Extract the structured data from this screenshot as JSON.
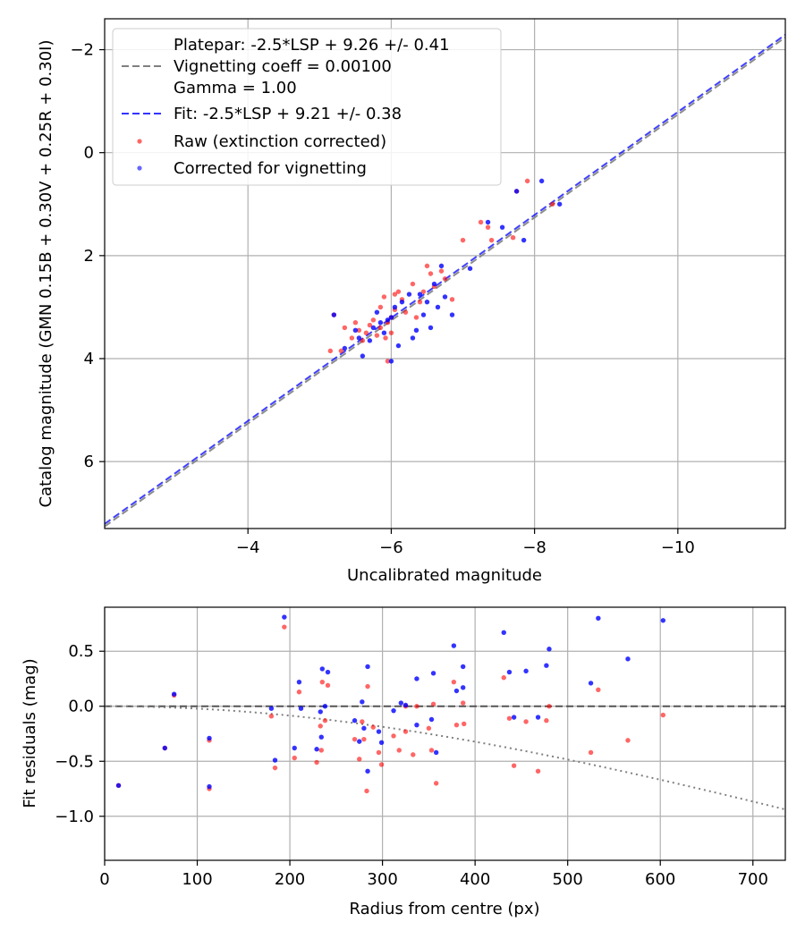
{
  "colors": {
    "raw": "#ff0000",
    "corrected": "#0000ff",
    "platepar_line": "#808080",
    "fit_line": "#0000ff",
    "grid": "#b0b0b0",
    "zero_line": "#404040",
    "vignetting_curve": "#808080"
  },
  "chart_data": [
    {
      "type": "scatter",
      "xlabel": "Uncalibrated magnitude",
      "ylabel": "Catalog magnitude (GMN 0.15B + 0.30V + 0.25R + 0.30I)",
      "xlim": [
        -2,
        -11.5
      ],
      "ylim": [
        7.3,
        -2.6
      ],
      "x_ticks": [
        -4,
        -6,
        -8,
        -10
      ],
      "y_ticks": [
        -2,
        0,
        2,
        4,
        6
      ],
      "x_tick_labels": [
        "−4",
        "−6",
        "−8",
        "−10"
      ],
      "y_tick_labels": [
        "−2",
        "0",
        "2",
        "4",
        "6"
      ],
      "grid": true,
      "legend_position": "top-left",
      "legend": {
        "platepar_lines": [
          "Platepar: -2.5*LSP + 9.26 +/- 0.41",
          "Vignetting coeff = 0.00100",
          "Gamma = 1.00"
        ],
        "fit": "Fit: -2.5*LSP + 9.21 +/- 0.38",
        "raw": "Raw (extinction corrected)",
        "corrected": "Corrected for vignetting"
      },
      "lines": [
        {
          "name": "Platepar",
          "slope": -2.5,
          "intercept": 9.26,
          "style": "dashed"
        },
        {
          "name": "Fit",
          "slope": -2.5,
          "intercept": 9.21,
          "style": "dashed"
        }
      ],
      "series": [
        {
          "name": "Raw (extinction corrected)",
          "points": [
            [
              -5.15,
              3.85
            ],
            [
              -5.35,
              3.4
            ],
            [
              -5.3,
              3.85
            ],
            [
              -5.2,
              3.15
            ],
            [
              -5.45,
              3.6
            ],
            [
              -5.5,
              3.3
            ],
            [
              -5.55,
              3.45
            ],
            [
              -5.6,
              3.65
            ],
            [
              -5.65,
              3.5
            ],
            [
              -5.7,
              3.35
            ],
            [
              -5.75,
              3.25
            ],
            [
              -5.8,
              3.55
            ],
            [
              -5.85,
              3.4
            ],
            [
              -5.85,
              3.0
            ],
            [
              -5.9,
              2.8
            ],
            [
              -5.92,
              3.6
            ],
            [
              -5.95,
              3.3
            ],
            [
              -5.95,
              4.05
            ],
            [
              -6.0,
              3.2
            ],
            [
              -6.0,
              3.5
            ],
            [
              -6.05,
              2.75
            ],
            [
              -6.05,
              3.05
            ],
            [
              -6.1,
              2.7
            ],
            [
              -6.15,
              2.85
            ],
            [
              -6.2,
              3.1
            ],
            [
              -6.3,
              2.55
            ],
            [
              -6.35,
              3.2
            ],
            [
              -6.4,
              2.9
            ],
            [
              -6.45,
              2.7
            ],
            [
              -6.5,
              2.2
            ],
            [
              -6.55,
              2.35
            ],
            [
              -6.6,
              2.6
            ],
            [
              -6.7,
              2.3
            ],
            [
              -6.75,
              2.45
            ],
            [
              -6.85,
              2.85
            ],
            [
              -7.0,
              1.7
            ],
            [
              -7.25,
              1.35
            ],
            [
              -7.35,
              1.45
            ],
            [
              -7.4,
              1.7
            ],
            [
              -7.7,
              1.65
            ],
            [
              -7.75,
              0.75
            ],
            [
              -7.9,
              0.55
            ],
            [
              -8.25,
              1.0
            ]
          ]
        },
        {
          "name": "Corrected for vignetting",
          "points": [
            [
              -5.2,
              3.15
            ],
            [
              -5.35,
              3.8
            ],
            [
              -5.5,
              3.45
            ],
            [
              -5.55,
              3.6
            ],
            [
              -5.6,
              3.95
            ],
            [
              -5.7,
              3.65
            ],
            [
              -5.75,
              3.4
            ],
            [
              -5.8,
              3.1
            ],
            [
              -5.85,
              3.3
            ],
            [
              -5.9,
              3.5
            ],
            [
              -5.95,
              3.25
            ],
            [
              -6.0,
              4.05
            ],
            [
              -6.0,
              3.2
            ],
            [
              -6.05,
              3.0
            ],
            [
              -6.1,
              3.75
            ],
            [
              -6.15,
              2.9
            ],
            [
              -6.25,
              2.75
            ],
            [
              -6.3,
              3.6
            ],
            [
              -6.35,
              3.45
            ],
            [
              -6.4,
              2.75
            ],
            [
              -6.45,
              3.15
            ],
            [
              -6.5,
              2.9
            ],
            [
              -6.55,
              3.4
            ],
            [
              -6.6,
              2.55
            ],
            [
              -6.65,
              3.0
            ],
            [
              -6.7,
              2.2
            ],
            [
              -6.75,
              2.8
            ],
            [
              -6.85,
              3.15
            ],
            [
              -7.1,
              2.25
            ],
            [
              -7.35,
              1.35
            ],
            [
              -7.55,
              1.45
            ],
            [
              -7.75,
              0.75
            ],
            [
              -7.85,
              1.7
            ],
            [
              -8.1,
              0.55
            ],
            [
              -8.35,
              1.0
            ]
          ]
        }
      ]
    },
    {
      "type": "scatter",
      "xlabel": "Radius from centre (px)",
      "ylabel": "Fit residuals (mag)",
      "xlim": [
        0,
        735
      ],
      "ylim": [
        -1.4,
        0.9
      ],
      "x_ticks": [
        0,
        100,
        200,
        300,
        400,
        500,
        600,
        700
      ],
      "y_ticks": [
        0.5,
        0.0,
        -0.5,
        -1.0
      ],
      "x_tick_labels": [
        "0",
        "100",
        "200",
        "300",
        "400",
        "500",
        "600",
        "700"
      ],
      "y_tick_labels": [
        "0.5",
        "0.0",
        "−0.5",
        "−1.0"
      ],
      "grid": true,
      "zero_line": {
        "value": 0.0,
        "style": "dashed"
      },
      "vignetting_curve": {
        "coeff": 0.001,
        "style": "dotted"
      },
      "series": [
        {
          "name": "Raw (extinction corrected)",
          "points": [
            [
              15,
              -0.72
            ],
            [
              65,
              -0.38
            ],
            [
              75,
              0.1
            ],
            [
              113,
              -0.31
            ],
            [
              113,
              -0.75
            ],
            [
              180,
              -0.09
            ],
            [
              184,
              -0.56
            ],
            [
              194,
              0.72
            ],
            [
              205,
              -0.47
            ],
            [
              210,
              0.13
            ],
            [
              229,
              -0.51
            ],
            [
              233,
              -0.18
            ],
            [
              234,
              -0.4
            ],
            [
              235,
              0.22
            ],
            [
              238,
              -0.13
            ],
            [
              241,
              0.19
            ],
            [
              270,
              -0.3
            ],
            [
              275,
              -0.48
            ],
            [
              278,
              -0.14
            ],
            [
              280,
              -0.3
            ],
            [
              283,
              -0.77
            ],
            [
              284,
              0.18
            ],
            [
              290,
              -0.19
            ],
            [
              296,
              -0.42
            ],
            [
              299,
              -0.53
            ],
            [
              312,
              -0.27
            ],
            [
              318,
              -0.4
            ],
            [
              325,
              0.0
            ],
            [
              325,
              -0.23
            ],
            [
              333,
              -0.44
            ],
            [
              337,
              0.0
            ],
            [
              350,
              -0.2
            ],
            [
              353,
              -0.4
            ],
            [
              355,
              0.02
            ],
            [
              358,
              -0.7
            ],
            [
              377,
              0.22
            ],
            [
              380,
              -0.17
            ],
            [
              387,
              0.03
            ],
            [
              388,
              -0.16
            ],
            [
              431,
              0.26
            ],
            [
              437,
              -0.11
            ],
            [
              442,
              -0.54
            ],
            [
              455,
              -0.14
            ],
            [
              468,
              -0.59
            ],
            [
              477,
              -0.13
            ],
            [
              480,
              0.0
            ],
            [
              525,
              -0.42
            ],
            [
              533,
              0.15
            ],
            [
              565,
              -0.31
            ],
            [
              603,
              -0.08
            ]
          ]
        },
        {
          "name": "Corrected for vignetting",
          "points": [
            [
              15,
              -0.72
            ],
            [
              65,
              -0.38
            ],
            [
              75,
              0.11
            ],
            [
              113,
              -0.29
            ],
            [
              113,
              -0.73
            ],
            [
              180,
              -0.02
            ],
            [
              184,
              -0.49
            ],
            [
              194,
              0.81
            ],
            [
              205,
              -0.38
            ],
            [
              210,
              0.22
            ],
            [
              212,
              -0.02
            ],
            [
              229,
              -0.39
            ],
            [
              233,
              -0.05
            ],
            [
              234,
              -0.28
            ],
            [
              235,
              0.34
            ],
            [
              238,
              0.0
            ],
            [
              241,
              0.31
            ],
            [
              270,
              -0.13
            ],
            [
              275,
              -0.32
            ],
            [
              278,
              0.04
            ],
            [
              280,
              -0.2
            ],
            [
              284,
              0.36
            ],
            [
              284,
              -0.59
            ],
            [
              296,
              -0.23
            ],
            [
              299,
              -0.33
            ],
            [
              312,
              -0.04
            ],
            [
              320,
              0.03
            ],
            [
              325,
              0.01
            ],
            [
              337,
              0.25
            ],
            [
              337,
              -0.17
            ],
            [
              353,
              -0.12
            ],
            [
              355,
              0.3
            ],
            [
              358,
              -0.42
            ],
            [
              377,
              0.55
            ],
            [
              380,
              0.14
            ],
            [
              387,
              0.36
            ],
            [
              387,
              0.17
            ],
            [
              431,
              0.67
            ],
            [
              437,
              0.31
            ],
            [
              442,
              -0.1
            ],
            [
              455,
              0.32
            ],
            [
              468,
              -0.1
            ],
            [
              477,
              0.37
            ],
            [
              480,
              0.52
            ],
            [
              525,
              0.21
            ],
            [
              533,
              0.8
            ],
            [
              565,
              0.43
            ],
            [
              603,
              0.78
            ]
          ]
        }
      ]
    }
  ]
}
